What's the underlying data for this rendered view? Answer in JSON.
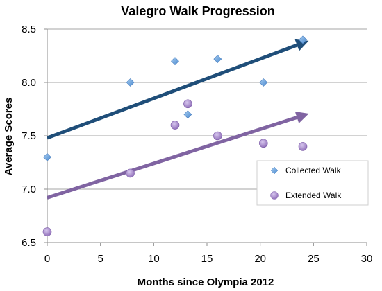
{
  "chart_data": {
    "type": "scatter",
    "title": "Valegro Walk Progression",
    "xlabel": "Months since Olympia 2012",
    "ylabel": "Average Scores",
    "xlim": [
      0,
      30
    ],
    "ylim": [
      6.5,
      8.5
    ],
    "xticks": [
      "0",
      "5",
      "10",
      "15",
      "20",
      "25",
      "30"
    ],
    "yticks": [
      "6.5",
      "7.0",
      "7.5",
      "8.0",
      "8.5"
    ],
    "grid": "horizontal",
    "legend_position": "right",
    "series": [
      {
        "name": "Collected Walk",
        "marker": "diamond",
        "color": "#5b9bd5",
        "points": [
          {
            "x": 0,
            "y": 7.3
          },
          {
            "x": 7.8,
            "y": 8.0
          },
          {
            "x": 12,
            "y": 8.2
          },
          {
            "x": 13.2,
            "y": 7.7
          },
          {
            "x": 16,
            "y": 8.22
          },
          {
            "x": 20.3,
            "y": 8.0
          },
          {
            "x": 24,
            "y": 8.4
          }
        ],
        "trend": {
          "x1": 0,
          "y1": 7.48,
          "x2": 24,
          "y2": 8.37,
          "color": "#1f4e79"
        }
      },
      {
        "name": "Extended Walk",
        "marker": "circle",
        "color": "#9e7fc4",
        "points": [
          {
            "x": 0,
            "y": 6.6
          },
          {
            "x": 7.8,
            "y": 7.15
          },
          {
            "x": 12,
            "y": 7.6
          },
          {
            "x": 13.2,
            "y": 7.8
          },
          {
            "x": 16,
            "y": 7.5
          },
          {
            "x": 20.3,
            "y": 7.43
          },
          {
            "x": 24,
            "y": 7.4
          }
        ],
        "trend": {
          "x1": 0,
          "y1": 6.92,
          "x2": 24,
          "y2": 7.69,
          "color": "#8064a2"
        }
      }
    ]
  }
}
